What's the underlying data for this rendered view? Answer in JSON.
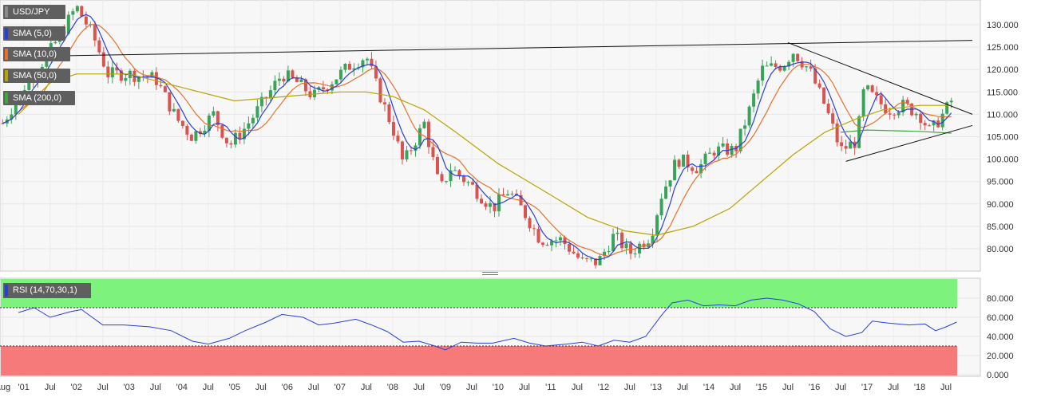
{
  "chart_data": [
    {
      "type": "candlestick",
      "symbol": "USD/JPY",
      "indicators": [
        {
          "name": "SMA (5,0)",
          "color": "#2a3fd6"
        },
        {
          "name": "SMA (10,0)",
          "color": "#e8702a"
        },
        {
          "name": "SMA (50,0)",
          "color": "#b8a400"
        },
        {
          "name": "SMA (200,0)",
          "color": "#3ea83e"
        }
      ],
      "ylim": [
        75,
        135
      ],
      "y_ticks": [
        "130.000",
        "125.000",
        "120.000",
        "115.000",
        "110.000",
        "105.000",
        "100.000",
        "95.000",
        "90.000",
        "85.000",
        "80.000"
      ],
      "x_tick_labels": [
        "Aug",
        "'01",
        "Jul",
        "'02",
        "Jul",
        "'03",
        "Jul",
        "'04",
        "Jul",
        "'05",
        "Jul",
        "'06",
        "Jul",
        "'07",
        "Jul",
        "'08",
        "Jul",
        "'09",
        "Jul",
        "'10",
        "Jul",
        "'11",
        "Jul",
        "'12",
        "Jul",
        "'13",
        "Jul",
        "'14",
        "Jul",
        "'15",
        "Jul",
        "'16",
        "Jul",
        "'17",
        "Jul",
        "'18",
        "Jul"
      ],
      "up_color": "#3aa35a",
      "down_color": "#d9534f",
      "close_path": [
        [
          2000.6,
          108
        ],
        [
          2001.0,
          116
        ],
        [
          2001.5,
          124
        ],
        [
          2002.0,
          134
        ],
        [
          2002.3,
          128
        ],
        [
          2002.6,
          119
        ],
        [
          2003.0,
          119
        ],
        [
          2003.5,
          118
        ],
        [
          2003.9,
          109
        ],
        [
          2004.2,
          105
        ],
        [
          2004.6,
          110
        ],
        [
          2004.9,
          103
        ],
        [
          2005.2,
          107
        ],
        [
          2005.5,
          112
        ],
        [
          2005.9,
          119
        ],
        [
          2006.2,
          117
        ],
        [
          2006.5,
          114
        ],
        [
          2006.9,
          118
        ],
        [
          2007.2,
          121
        ],
        [
          2007.5,
          123
        ],
        [
          2007.7,
          116
        ],
        [
          2008.0,
          107
        ],
        [
          2008.2,
          99
        ],
        [
          2008.6,
          108
        ],
        [
          2008.9,
          93
        ],
        [
          2009.1,
          98
        ],
        [
          2009.5,
          94
        ],
        [
          2009.9,
          89
        ],
        [
          2010.2,
          93
        ],
        [
          2010.5,
          88
        ],
        [
          2010.8,
          82
        ],
        [
          2011.2,
          82
        ],
        [
          2011.6,
          77
        ],
        [
          2011.9,
          77
        ],
        [
          2012.2,
          83
        ],
        [
          2012.5,
          79
        ],
        [
          2012.9,
          83
        ],
        [
          2013.1,
          92
        ],
        [
          2013.4,
          100
        ],
        [
          2013.8,
          98
        ],
        [
          2014.1,
          102
        ],
        [
          2014.5,
          102
        ],
        [
          2014.8,
          112
        ],
        [
          2015.0,
          120
        ],
        [
          2015.4,
          121
        ],
        [
          2015.6,
          124
        ],
        [
          2015.9,
          120
        ],
        [
          2016.2,
          112
        ],
        [
          2016.5,
          102
        ],
        [
          2016.8,
          104
        ],
        [
          2016.95,
          116
        ],
        [
          2017.1,
          114
        ],
        [
          2017.4,
          111
        ],
        [
          2017.7,
          112
        ],
        [
          2018.0,
          110
        ],
        [
          2018.2,
          106
        ],
        [
          2018.5,
          111
        ],
        [
          2018.6,
          113
        ]
      ],
      "sma50_path": [
        [
          2000.9,
          110
        ],
        [
          2001.5,
          117
        ],
        [
          2002.0,
          119
        ],
        [
          2003.0,
          119
        ],
        [
          2004.0,
          116
        ],
        [
          2005.0,
          113
        ],
        [
          2006.0,
          114
        ],
        [
          2007.0,
          115
        ],
        [
          2007.5,
          115
        ],
        [
          2008.0,
          114
        ],
        [
          2008.6,
          111
        ],
        [
          2009.2,
          106
        ],
        [
          2010.0,
          99
        ],
        [
          2011.0,
          92
        ],
        [
          2011.7,
          87
        ],
        [
          2012.4,
          84
        ],
        [
          2013.0,
          83
        ],
        [
          2013.7,
          85
        ],
        [
          2014.4,
          89
        ],
        [
          2015.0,
          95
        ],
        [
          2015.6,
          101
        ],
        [
          2016.2,
          106
        ],
        [
          2016.8,
          109
        ],
        [
          2017.3,
          111
        ],
        [
          2018.0,
          112
        ],
        [
          2018.6,
          112
        ]
      ],
      "sma200_path": [
        [
          2016.5,
          106
        ],
        [
          2017.0,
          106.5
        ],
        [
          2018.0,
          106.2
        ],
        [
          2018.6,
          105.8
        ]
      ],
      "trendlines": [
        {
          "from": [
            2001.4,
            123
          ],
          "to": [
            2019.0,
            126.5
          ]
        },
        {
          "from": [
            2015.5,
            126
          ],
          "to": [
            2019.0,
            110
          ]
        },
        {
          "from": [
            2016.6,
            99.5
          ],
          "to": [
            2019.0,
            107.5
          ]
        }
      ]
    },
    {
      "type": "line",
      "name": "RSI (14,70,30,1)",
      "ylim": [
        0,
        90
      ],
      "y_ticks": [
        "80.000",
        "60.000",
        "40.000",
        "20.000",
        "0.000"
      ],
      "overbought": 70,
      "oversold": 30,
      "overbought_color": "#7df27d",
      "oversold_color": "#f77a7a",
      "line_color": "#2a3fd6",
      "path": [
        [
          2000.9,
          65
        ],
        [
          2001.2,
          70
        ],
        [
          2001.5,
          60
        ],
        [
          2001.9,
          66
        ],
        [
          2002.1,
          68
        ],
        [
          2002.5,
          52
        ],
        [
          2002.9,
          52
        ],
        [
          2003.4,
          50
        ],
        [
          2003.8,
          46
        ],
        [
          2004.2,
          35
        ],
        [
          2004.5,
          32
        ],
        [
          2004.9,
          38
        ],
        [
          2005.2,
          46
        ],
        [
          2005.6,
          55
        ],
        [
          2005.9,
          63
        ],
        [
          2006.3,
          60
        ],
        [
          2006.6,
          52
        ],
        [
          2006.9,
          54
        ],
        [
          2007.3,
          58
        ],
        [
          2007.6,
          52
        ],
        [
          2007.9,
          45
        ],
        [
          2008.2,
          34
        ],
        [
          2008.5,
          35
        ],
        [
          2008.8,
          30
        ],
        [
          2009.0,
          26
        ],
        [
          2009.3,
          34
        ],
        [
          2009.6,
          33
        ],
        [
          2009.9,
          33
        ],
        [
          2010.3,
          38
        ],
        [
          2010.6,
          33
        ],
        [
          2010.9,
          30
        ],
        [
          2011.3,
          32
        ],
        [
          2011.6,
          34
        ],
        [
          2011.9,
          30
        ],
        [
          2012.2,
          36
        ],
        [
          2012.5,
          34
        ],
        [
          2012.8,
          40
        ],
        [
          2013.1,
          62
        ],
        [
          2013.3,
          75
        ],
        [
          2013.6,
          78
        ],
        [
          2013.9,
          72
        ],
        [
          2014.2,
          73
        ],
        [
          2014.5,
          72
        ],
        [
          2014.8,
          78
        ],
        [
          2015.1,
          80
        ],
        [
          2015.4,
          78
        ],
        [
          2015.7,
          74
        ],
        [
          2016.0,
          66
        ],
        [
          2016.3,
          48
        ],
        [
          2016.6,
          40
        ],
        [
          2016.9,
          44
        ],
        [
          2017.1,
          56
        ],
        [
          2017.4,
          54
        ],
        [
          2017.8,
          52
        ],
        [
          2018.1,
          53
        ],
        [
          2018.3,
          46
        ],
        [
          2018.5,
          50
        ],
        [
          2018.7,
          55
        ]
      ]
    }
  ]
}
